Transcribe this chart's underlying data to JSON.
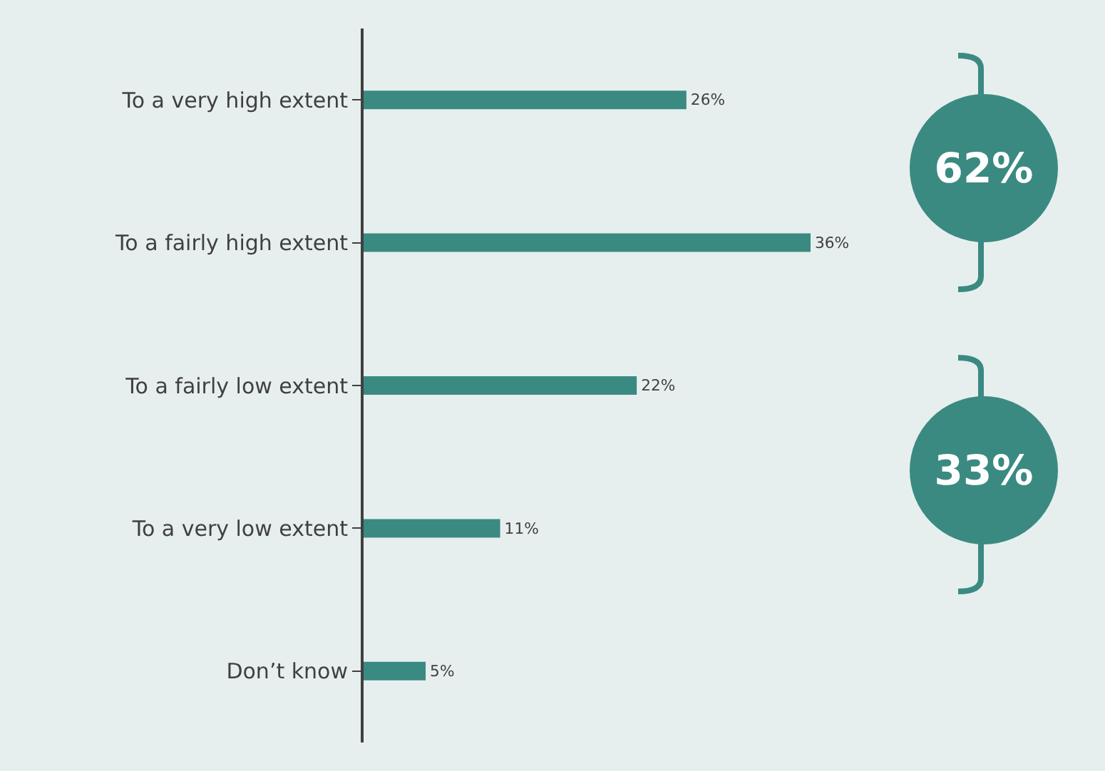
{
  "chart_data": {
    "type": "bar",
    "orientation": "horizontal",
    "categories": [
      "To a very high extent",
      "To a fairly high extent",
      "To a fairly low extent",
      "To a very low extent",
      "Don’t know"
    ],
    "values": [
      26,
      36,
      22,
      11,
      5
    ],
    "value_labels": [
      "26%",
      "36%",
      "22%",
      "11%",
      "5%"
    ],
    "color": "#3a8a82",
    "tick_labels": "y",
    "grid": false,
    "annotations": [
      "62%",
      "33%"
    ]
  }
}
